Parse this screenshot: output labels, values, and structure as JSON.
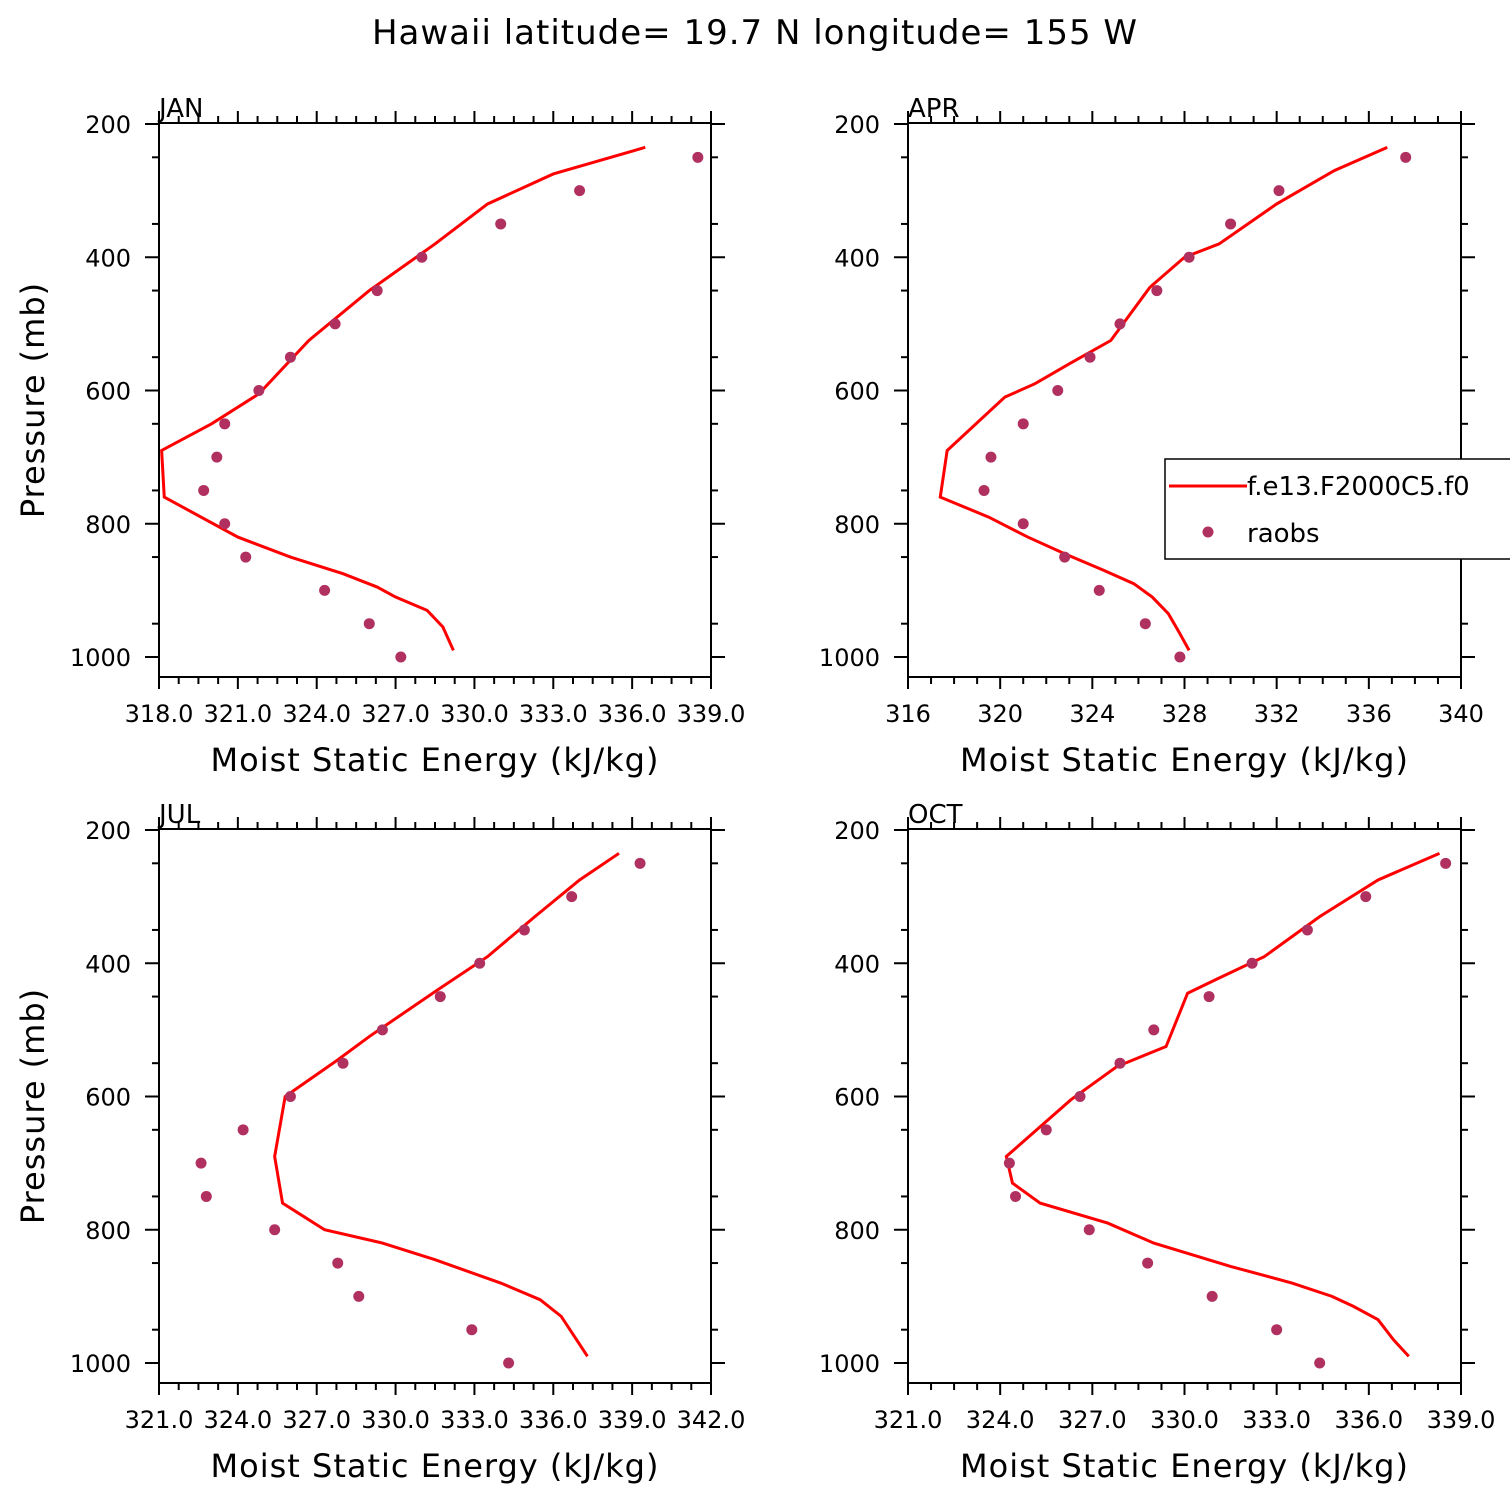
{
  "title": "Hawaii  latitude= 19.7 N longitude= 155 W",
  "colors": {
    "model": "#ff0000",
    "obs": "#b03060"
  },
  "legend": {
    "model_label": "f.e13.F2000C5.f0",
    "obs_label": "raobs",
    "placement": "inside APR panel, right"
  },
  "chart_data": [
    {
      "type": "line",
      "panel": "JAN",
      "xlabel": "Moist Static Energy (kJ/kg)",
      "ylabel": "Pressure (mb)",
      "xlim": [
        318,
        339
      ],
      "ylim": [
        1000,
        200
      ],
      "y_inverted": true,
      "x_ticks": [
        "318.0",
        "321.0",
        "324.0",
        "327.0",
        "330.0",
        "333.0",
        "336.0",
        "339.0"
      ],
      "y_ticks": [
        "200",
        "400",
        "600",
        "800",
        "1000"
      ],
      "series": [
        {
          "name": "f.e13.F2000C5.f0",
          "kind": "line",
          "x": [
            336.5,
            333.0,
            330.5,
            328.5,
            326.0,
            323.7,
            321.8,
            320.0,
            318.1,
            318.2,
            321.0,
            323.0,
            325.0,
            326.3,
            327.0,
            328.2,
            328.8,
            329.2
          ],
          "y": [
            235,
            275,
            320,
            380,
            450,
            525,
            605,
            650,
            690,
            760,
            820,
            850,
            875,
            895,
            910,
            930,
            955,
            990
          ]
        },
        {
          "name": "raobs",
          "kind": "scatter",
          "x": [
            338.5,
            334.0,
            331.0,
            328.0,
            326.3,
            324.7,
            323.0,
            321.8,
            320.5,
            320.2,
            319.7,
            320.5,
            321.3,
            324.3,
            326.0,
            327.2
          ],
          "y": [
            250,
            300,
            350,
            400,
            450,
            500,
            550,
            600,
            650,
            700,
            750,
            800,
            850,
            900,
            950,
            1000
          ]
        }
      ]
    },
    {
      "type": "line",
      "panel": "APR",
      "xlabel": "Moist Static Energy (kJ/kg)",
      "ylabel": "",
      "xlim": [
        316,
        340
      ],
      "ylim": [
        1000,
        200
      ],
      "y_inverted": true,
      "x_ticks": [
        "316",
        "320",
        "324",
        "328",
        "332",
        "336",
        "340"
      ],
      "y_ticks": [
        "200",
        "400",
        "600",
        "800",
        "1000"
      ],
      "series": [
        {
          "name": "f.e13.F2000C5.f0",
          "kind": "line",
          "x": [
            336.8,
            334.5,
            332.0,
            329.5,
            328.0,
            326.5,
            324.8,
            323.0,
            321.5,
            320.2,
            317.7,
            317.4,
            319.5,
            321.2,
            322.8,
            324.5,
            325.8,
            326.6,
            327.3,
            327.8,
            328.2
          ],
          "y": [
            235,
            270,
            320,
            380,
            400,
            445,
            525,
            560,
            590,
            610,
            690,
            760,
            790,
            820,
            845,
            870,
            890,
            910,
            935,
            965,
            990
          ]
        },
        {
          "name": "raobs",
          "kind": "scatter",
          "x": [
            337.6,
            332.1,
            330.0,
            328.2,
            326.8,
            325.2,
            323.9,
            322.5,
            321.0,
            319.6,
            319.3,
            321.0,
            322.8,
            324.3,
            326.3,
            327.8
          ],
          "y": [
            250,
            300,
            350,
            400,
            450,
            500,
            550,
            600,
            650,
            700,
            750,
            800,
            850,
            900,
            950,
            1000
          ]
        }
      ]
    },
    {
      "type": "line",
      "panel": "JUL",
      "xlabel": "Moist Static Energy (kJ/kg)",
      "ylabel": "Pressure (mb)",
      "xlim": [
        321,
        342
      ],
      "ylim": [
        1000,
        200
      ],
      "y_inverted": true,
      "x_ticks": [
        "321.0",
        "324.0",
        "327.0",
        "330.0",
        "333.0",
        "336.0",
        "339.0",
        "342.0"
      ],
      "y_ticks": [
        "200",
        "400",
        "600",
        "800",
        "1000"
      ],
      "series": [
        {
          "name": "f.e13.F2000C5.f0",
          "kind": "line",
          "x": [
            338.5,
            337.0,
            335.3,
            333.5,
            331.6,
            329.0,
            327.8,
            325.8,
            325.4,
            325.7,
            326.5,
            327.3,
            329.5,
            331.5,
            334.0,
            335.5,
            336.3,
            336.8,
            337.3
          ],
          "y": [
            235,
            275,
            330,
            390,
            440,
            510,
            545,
            600,
            690,
            760,
            780,
            800,
            820,
            845,
            880,
            905,
            930,
            960,
            990
          ]
        },
        {
          "name": "raobs",
          "kind": "scatter",
          "x": [
            339.3,
            336.7,
            334.9,
            333.2,
            331.7,
            329.5,
            328.0,
            326.0,
            324.2,
            322.6,
            322.8,
            325.4,
            327.8,
            328.6,
            332.9,
            334.3
          ],
          "y": [
            250,
            300,
            350,
            400,
            450,
            500,
            550,
            600,
            650,
            700,
            750,
            800,
            850,
            900,
            950,
            1000
          ]
        }
      ]
    },
    {
      "type": "line",
      "panel": "OCT",
      "xlabel": "Moist Static Energy (kJ/kg)",
      "ylabel": "",
      "xlim": [
        321,
        339
      ],
      "ylim": [
        1000,
        200
      ],
      "y_inverted": true,
      "x_ticks": [
        "321.0",
        "324.0",
        "327.0",
        "330.0",
        "333.0",
        "336.0",
        "339.0"
      ],
      "y_ticks": [
        "200",
        "400",
        "600",
        "800",
        "1000"
      ],
      "series": [
        {
          "name": "f.e13.F2000C5.f0",
          "kind": "line",
          "x": [
            338.3,
            336.3,
            334.4,
            332.6,
            331.0,
            330.1,
            329.4,
            327.8,
            326.3,
            324.2,
            324.4,
            325.3,
            327.5,
            329.0,
            331.5,
            333.5,
            334.8,
            335.5,
            336.3,
            336.8,
            337.3
          ],
          "y": [
            235,
            275,
            330,
            390,
            425,
            445,
            525,
            555,
            605,
            690,
            730,
            760,
            790,
            820,
            855,
            880,
            900,
            915,
            935,
            965,
            990
          ]
        },
        {
          "name": "raobs",
          "kind": "scatter",
          "x": [
            338.5,
            335.9,
            334.0,
            332.2,
            330.8,
            329.0,
            327.9,
            326.6,
            325.5,
            324.3,
            324.5,
            326.9,
            328.8,
            330.9,
            333.0,
            334.4
          ],
          "y": [
            250,
            300,
            350,
            400,
            450,
            500,
            550,
            600,
            650,
            700,
            750,
            800,
            850,
            900,
            950,
            1000
          ]
        }
      ]
    }
  ]
}
